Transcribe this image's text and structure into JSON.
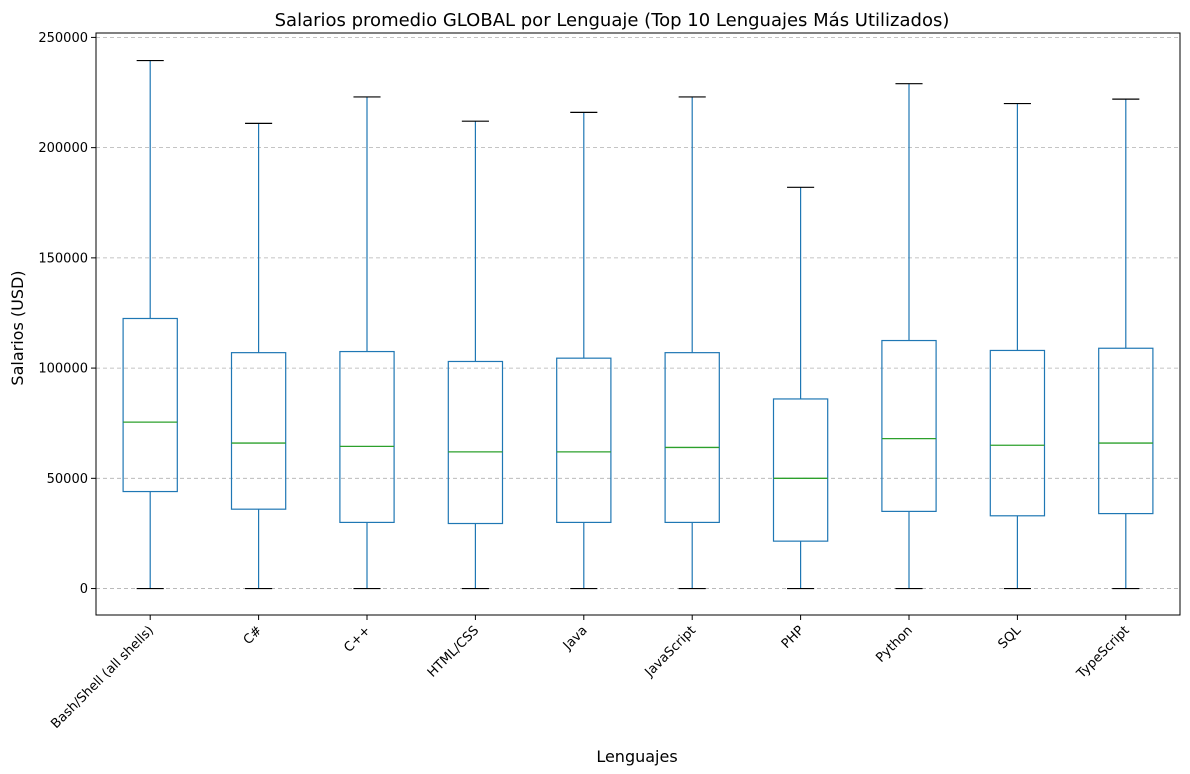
{
  "chart_data": {
    "type": "boxplot",
    "title": "Salarios promedio GLOBAL por Lenguaje (Top 10 Lenguajes Más Utilizados)",
    "xlabel": "Lenguajes",
    "ylabel": "Salarios (USD)",
    "categories": [
      "Bash/Shell (all shells)",
      "C#",
      "C++",
      "HTML/CSS",
      "Java",
      "JavaScript",
      "PHP",
      "Python",
      "SQL",
      "TypeScript"
    ],
    "boxes": [
      {
        "whisker_low": 0,
        "q1": 44000,
        "median": 75500,
        "q3": 122500,
        "whisker_high": 239500
      },
      {
        "whisker_low": 0,
        "q1": 36000,
        "median": 66000,
        "q3": 107000,
        "whisker_high": 211000
      },
      {
        "whisker_low": 0,
        "q1": 30000,
        "median": 64500,
        "q3": 107500,
        "whisker_high": 223000
      },
      {
        "whisker_low": 0,
        "q1": 29500,
        "median": 62000,
        "q3": 103000,
        "whisker_high": 212000
      },
      {
        "whisker_low": 0,
        "q1": 30000,
        "median": 62000,
        "q3": 104500,
        "whisker_high": 216000
      },
      {
        "whisker_low": 0,
        "q1": 30000,
        "median": 64000,
        "q3": 107000,
        "whisker_high": 223000
      },
      {
        "whisker_low": 0,
        "q1": 21500,
        "median": 50000,
        "q3": 86000,
        "whisker_high": 182000
      },
      {
        "whisker_low": 0,
        "q1": 35000,
        "median": 68000,
        "q3": 112500,
        "whisker_high": 229000
      },
      {
        "whisker_low": 0,
        "q1": 33000,
        "median": 65000,
        "q3": 108000,
        "whisker_high": 220000
      },
      {
        "whisker_low": 0,
        "q1": 34000,
        "median": 66000,
        "q3": 109000,
        "whisker_high": 222000
      }
    ],
    "yticks": [
      0,
      50000,
      100000,
      150000,
      200000,
      250000
    ],
    "ylim": [
      -12000,
      252000
    ],
    "grid": "horizontal dashed",
    "colors": {
      "box": "#1f77b4",
      "median": "#2ca02c",
      "cap": "#000000",
      "grid": "#b0b0b0"
    }
  }
}
